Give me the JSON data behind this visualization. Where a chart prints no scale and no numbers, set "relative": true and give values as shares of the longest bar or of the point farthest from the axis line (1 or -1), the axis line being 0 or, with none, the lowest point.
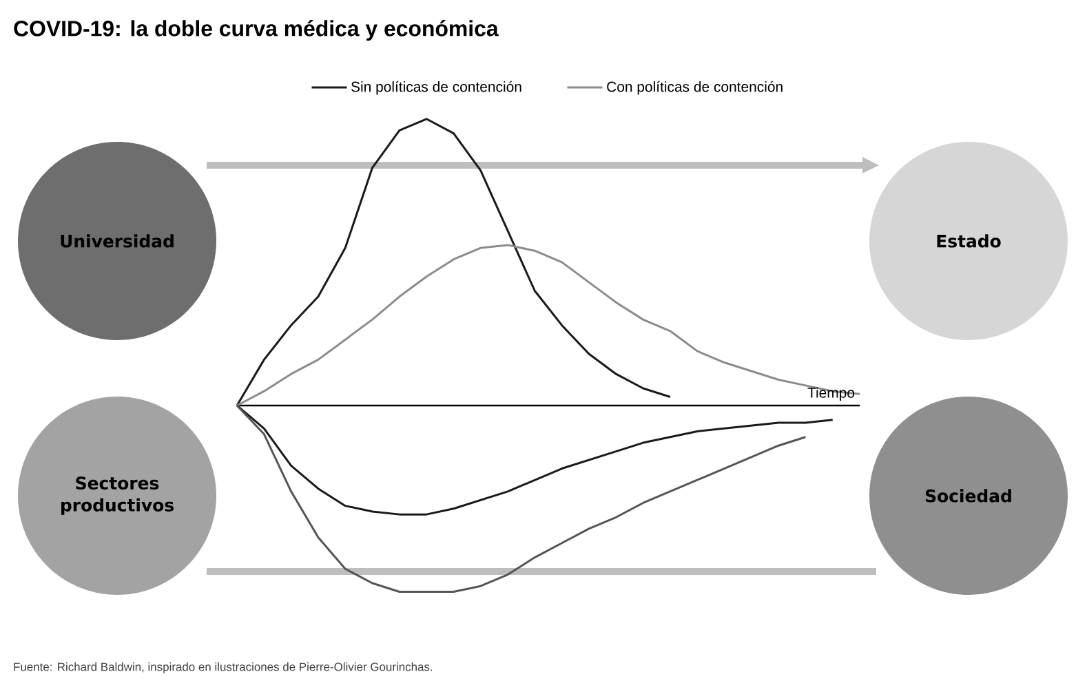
{
  "chart_data": {
    "type": "line",
    "title": "COVID-19: la doble curva médica y económica",
    "relative": true,
    "xlabel": "Tiempo",
    "legend": "top",
    "categories": [
      null,
      null,
      null,
      null,
      null,
      null,
      null,
      null,
      null,
      null,
      null,
      null,
      null,
      null,
      null,
      null,
      null,
      null,
      null,
      null,
      null,
      null,
      null,
      null
    ],
    "series": [
      {
        "name": "Sin políticas de contención",
        "color": "#1a1a1a",
        "values": [
          0,
          0.16,
          0.28,
          0.38,
          0.55,
          0.83,
          0.96,
          1.0,
          0.95,
          0.82,
          0.61,
          0.4,
          0.28,
          0.18,
          0.11,
          0.06,
          0.03,
          null,
          null,
          null,
          null,
          null,
          null,
          null
        ]
      },
      {
        "name": "Con políticas de contención",
        "color": "#8c8c8c",
        "values": [
          0,
          0.05,
          0.11,
          0.16,
          0.23,
          0.3,
          0.38,
          0.45,
          0.51,
          0.55,
          0.56,
          0.54,
          0.5,
          0.43,
          0.36,
          0.3,
          0.26,
          0.19,
          0.15,
          0.12,
          0.09,
          0.07,
          0.05,
          0.04
        ]
      },
      {
        "color": "#1a1a1a",
        "values": [
          0,
          -0.08,
          -0.21,
          -0.29,
          -0.35,
          -0.37,
          -0.38,
          -0.38,
          -0.36,
          -0.33,
          -0.3,
          -0.26,
          -0.22,
          -0.19,
          -0.16,
          -0.13,
          -0.11,
          -0.09,
          -0.08,
          -0.07,
          -0.06,
          -0.06,
          -0.05,
          null
        ]
      },
      {
        "color": "#555555",
        "values": [
          0,
          -0.1,
          -0.3,
          -0.46,
          -0.57,
          -0.62,
          -0.65,
          -0.65,
          -0.65,
          -0.63,
          -0.59,
          -0.53,
          -0.48,
          -0.43,
          -0.39,
          -0.34,
          -0.3,
          -0.26,
          -0.22,
          -0.18,
          -0.14,
          -0.11,
          null,
          null
        ]
      }
    ],
    "annotations": [
      "Universidad",
      "Estado",
      "Sectores productivos",
      "Sociedad",
      "Fuente: Richard Baldwin, inspirado en ilustraciones de Pierre-Olivier Gourinchas."
    ]
  }
}
